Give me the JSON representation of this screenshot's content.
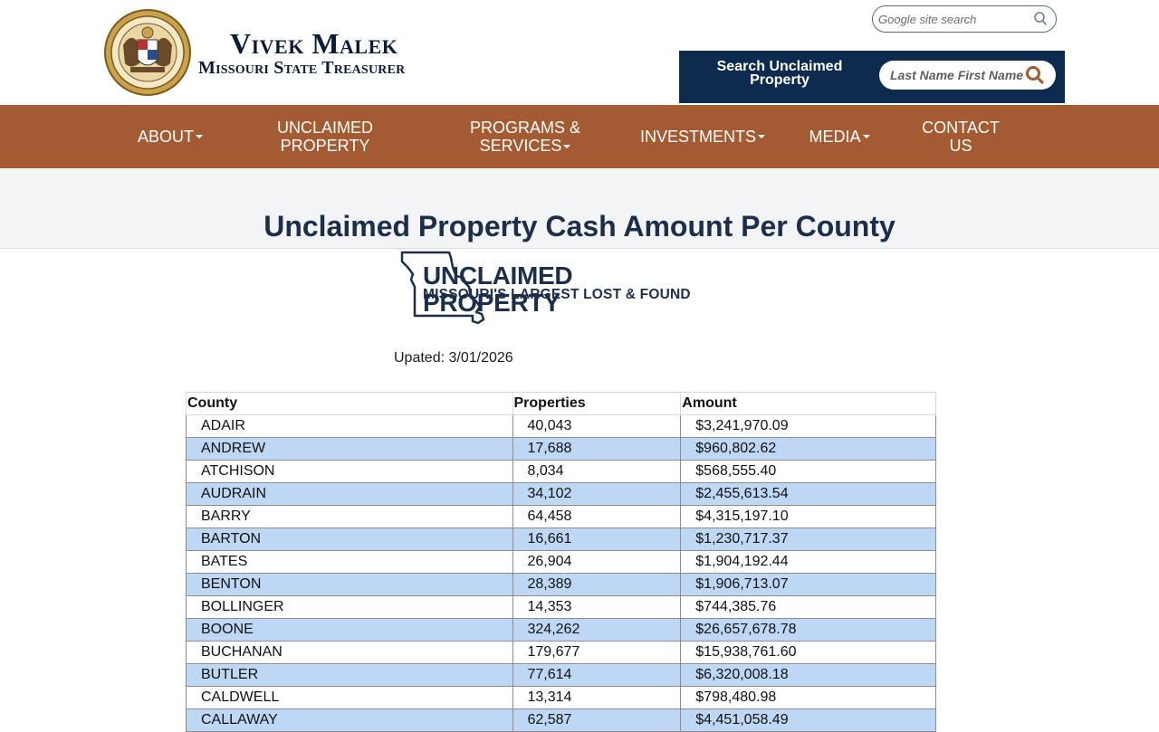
{
  "brand": {
    "name": "Vivek Malek",
    "title": "Missouri State Treasurer"
  },
  "site_search": {
    "placeholder": "Google site search",
    "icon": "search-icon"
  },
  "unclaimed_search": {
    "label": "Search Unclaimed Property",
    "placeholder": "Last Name First Name",
    "icon": "search-icon"
  },
  "nav": {
    "about": "ABOUT",
    "unclaimed_line1": "UNCLAIMED",
    "unclaimed_line2": "PROPERTY",
    "programs_line1": "PROGRAMS &",
    "programs_line2": "SERVICES",
    "investments": "INVESTMENTS",
    "media": "MEDIA",
    "contact_line1": "CONTACT",
    "contact_line2": "US"
  },
  "page": {
    "title": "Unclaimed Property Cash Amount Per County",
    "logo_big": "UNCLAIMED PROPERTY",
    "logo_small": "MISSOURI'S LARGEST LOST & FOUND",
    "updated": "Upated: 3/01/2026"
  },
  "table": {
    "headers": [
      "County",
      "Properties",
      "Amount"
    ],
    "rows": [
      [
        "ADAIR",
        "40,043",
        "$3,241,970.09"
      ],
      [
        "ANDREW",
        "17,688",
        "$960,802.62"
      ],
      [
        "ATCHISON",
        "8,034",
        "$568,555.40"
      ],
      [
        "AUDRAIN",
        "34,102",
        "$2,455,613.54"
      ],
      [
        "BARRY",
        "64,458",
        "$4,315,197.10"
      ],
      [
        "BARTON",
        "16,661",
        "$1,230,717.37"
      ],
      [
        "BATES",
        "26,904",
        "$1,904,192.44"
      ],
      [
        "BENTON",
        "28,389",
        "$1,906,713.07"
      ],
      [
        "BOLLINGER",
        "14,353",
        "$744,385.76"
      ],
      [
        "BOONE",
        "324,262",
        "$26,657,678.78"
      ],
      [
        "BUCHANAN",
        "179,677",
        "$15,938,761.60"
      ],
      [
        "BUTLER",
        "77,614",
        "$6,320,008.18"
      ],
      [
        "CALDWELL",
        "13,314",
        "$798,480.98"
      ],
      [
        "CALLAWAY",
        "62,587",
        "$4,451,058.49"
      ]
    ]
  },
  "colors": {
    "nav_bg": "#a55b32",
    "panel_bg": "#0d2b4e",
    "title_color": "#1b2e4b",
    "row_alt": "#bdd7f5"
  }
}
